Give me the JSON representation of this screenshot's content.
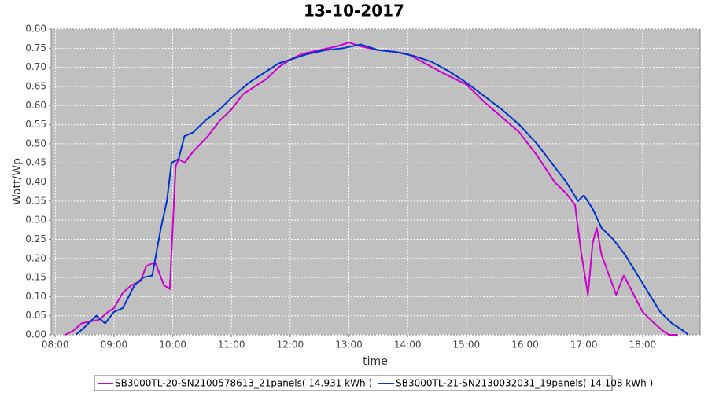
{
  "chart_data": {
    "type": "line",
    "title": "13-10-2017",
    "xlabel": "time",
    "ylabel": "Watt/Wp",
    "xlim": [
      7.93,
      18.98
    ],
    "ylim": [
      0,
      0.8
    ],
    "grid": true,
    "legend": "bottom",
    "xticks": [
      {
        "value": 8,
        "label": "08:00"
      },
      {
        "value": 9,
        "label": "09:00"
      },
      {
        "value": 10,
        "label": "10:00"
      },
      {
        "value": 11,
        "label": "11:00"
      },
      {
        "value": 12,
        "label": "12:00"
      },
      {
        "value": 13,
        "label": "13:00"
      },
      {
        "value": 14,
        "label": "14:00"
      },
      {
        "value": 15,
        "label": "15:00"
      },
      {
        "value": 16,
        "label": "16:00"
      },
      {
        "value": 17,
        "label": "17:00"
      },
      {
        "value": 18,
        "label": "18:00"
      }
    ],
    "yticks": [
      {
        "value": 0,
        "label": "0.00"
      },
      {
        "value": 0.05,
        "label": "0.05"
      },
      {
        "value": 0.1,
        "label": "0.10"
      },
      {
        "value": 0.15,
        "label": "0.15"
      },
      {
        "value": 0.2,
        "label": "0.20"
      },
      {
        "value": 0.25,
        "label": "0.25"
      },
      {
        "value": 0.3,
        "label": "0.30"
      },
      {
        "value": 0.35,
        "label": "0.35"
      },
      {
        "value": 0.4,
        "label": "0.40"
      },
      {
        "value": 0.45,
        "label": "0.45"
      },
      {
        "value": 0.5,
        "label": "0.50"
      },
      {
        "value": 0.55,
        "label": "0.55"
      },
      {
        "value": 0.6,
        "label": "0.60"
      },
      {
        "value": 0.65,
        "label": "0.65"
      },
      {
        "value": 0.7,
        "label": "0.70"
      },
      {
        "value": 0.75,
        "label": "0.75"
      },
      {
        "value": 0.8,
        "label": "0.80"
      }
    ],
    "series": [
      {
        "name": "SB3000TL-20-SN2100578613_21panels( 14.931 kWh )",
        "color": "#cc00cc",
        "x": [
          8.17,
          8.3,
          8.45,
          8.6,
          8.75,
          8.9,
          9.0,
          9.15,
          9.3,
          9.45,
          9.55,
          9.7,
          9.85,
          9.95,
          10.05,
          10.1,
          10.2,
          10.35,
          10.6,
          10.8,
          11.0,
          11.2,
          11.4,
          11.6,
          11.8,
          12.0,
          12.2,
          12.5,
          12.8,
          13.0,
          13.2,
          13.5,
          13.8,
          14.0,
          14.3,
          14.6,
          15.0,
          15.3,
          15.6,
          15.9,
          16.2,
          16.5,
          16.7,
          16.85,
          16.95,
          17.07,
          17.15,
          17.22,
          17.3,
          17.42,
          17.55,
          17.68,
          17.8,
          18.0,
          18.2,
          18.35,
          18.45,
          18.6
        ],
        "values": [
          0.0,
          0.01,
          0.03,
          0.035,
          0.04,
          0.06,
          0.07,
          0.11,
          0.13,
          0.14,
          0.18,
          0.19,
          0.13,
          0.12,
          0.44,
          0.46,
          0.45,
          0.48,
          0.52,
          0.56,
          0.59,
          0.63,
          0.65,
          0.67,
          0.7,
          0.72,
          0.735,
          0.745,
          0.755,
          0.765,
          0.755,
          0.745,
          0.74,
          0.735,
          0.71,
          0.685,
          0.655,
          0.61,
          0.57,
          0.53,
          0.47,
          0.4,
          0.37,
          0.34,
          0.22,
          0.105,
          0.24,
          0.28,
          0.21,
          0.16,
          0.105,
          0.155,
          0.12,
          0.06,
          0.03,
          0.01,
          0.0,
          0.0
        ]
      },
      {
        "name": "SB3000TL-21-SN2130032031_19panels( 14.108 kWh )",
        "color": "#0033cc",
        "x": [
          8.35,
          8.5,
          8.7,
          8.85,
          9.0,
          9.15,
          9.35,
          9.5,
          9.65,
          9.8,
          9.9,
          9.98,
          10.1,
          10.2,
          10.35,
          10.55,
          10.8,
          11.0,
          11.3,
          11.6,
          11.8,
          12.0,
          12.3,
          12.6,
          12.9,
          13.2,
          13.5,
          13.8,
          14.1,
          14.4,
          14.7,
          15.0,
          15.3,
          15.6,
          15.9,
          16.2,
          16.5,
          16.7,
          16.9,
          17.0,
          17.15,
          17.3,
          17.5,
          17.7,
          17.9,
          18.1,
          18.3,
          18.5,
          18.7,
          18.78
        ],
        "values": [
          0.0,
          0.02,
          0.05,
          0.03,
          0.06,
          0.07,
          0.13,
          0.15,
          0.155,
          0.28,
          0.35,
          0.45,
          0.46,
          0.52,
          0.53,
          0.56,
          0.59,
          0.62,
          0.66,
          0.69,
          0.71,
          0.72,
          0.735,
          0.745,
          0.75,
          0.76,
          0.745,
          0.74,
          0.73,
          0.715,
          0.69,
          0.66,
          0.625,
          0.59,
          0.55,
          0.5,
          0.44,
          0.4,
          0.35,
          0.365,
          0.33,
          0.28,
          0.25,
          0.21,
          0.16,
          0.11,
          0.06,
          0.03,
          0.01,
          0.0
        ]
      }
    ]
  }
}
